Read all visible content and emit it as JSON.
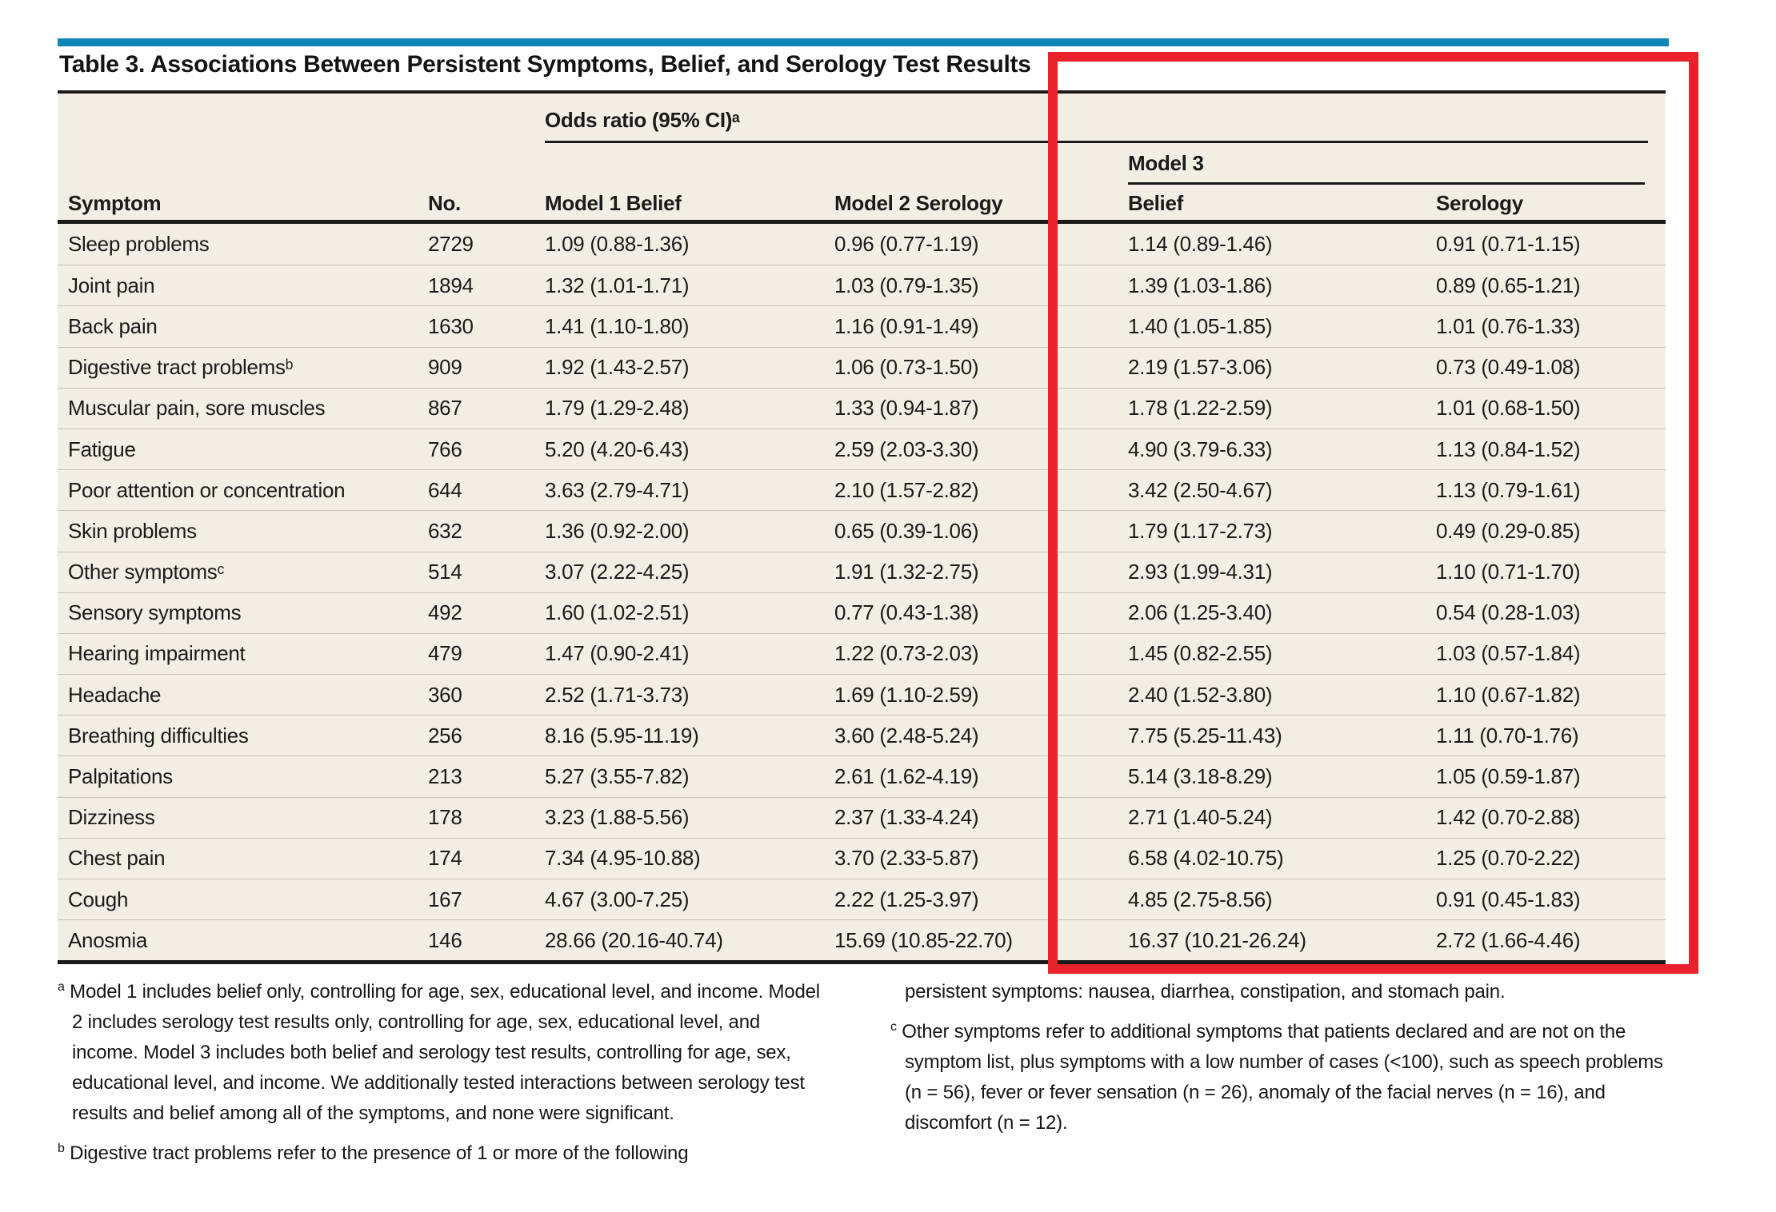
{
  "table": {
    "title": "Table 3. Associations Between Persistent Symptoms, Belief, and Serology Test Results",
    "spanners": {
      "odds_ratio": "Odds ratio (95% CI)ᵃ",
      "model3": "Model 3"
    },
    "columns": [
      "Symptom",
      "No.",
      "Model 1 Belief",
      "Model 2 Serology",
      "Belief",
      "Serology"
    ],
    "rows": [
      {
        "symptom": "Sleep problems",
        "no": "2729",
        "m1_belief": "1.09 (0.88-1.36)",
        "m2_serology": "0.96 (0.77-1.19)",
        "m3_belief": "1.14 (0.89-1.46)",
        "m3_serology": "0.91 (0.71-1.15)"
      },
      {
        "symptom": "Joint pain",
        "no": "1894",
        "m1_belief": "1.32 (1.01-1.71)",
        "m2_serology": "1.03 (0.79-1.35)",
        "m3_belief": "1.39 (1.03-1.86)",
        "m3_serology": "0.89 (0.65-1.21)"
      },
      {
        "symptom": "Back pain",
        "no": "1630",
        "m1_belief": "1.41 (1.10-1.80)",
        "m2_serology": "1.16 (0.91-1.49)",
        "m3_belief": "1.40 (1.05-1.85)",
        "m3_serology": "1.01 (0.76-1.33)"
      },
      {
        "symptom": "Digestive tract problemsᵇ",
        "no": "909",
        "m1_belief": "1.92 (1.43-2.57)",
        "m2_serology": "1.06 (0.73-1.50)",
        "m3_belief": "2.19 (1.57-3.06)",
        "m3_serology": "0.73 (0.49-1.08)"
      },
      {
        "symptom": "Muscular pain, sore muscles",
        "no": "867",
        "m1_belief": "1.79 (1.29-2.48)",
        "m2_serology": "1.33 (0.94-1.87)",
        "m3_belief": "1.78 (1.22-2.59)",
        "m3_serology": "1.01 (0.68-1.50)"
      },
      {
        "symptom": "Fatigue",
        "no": "766",
        "m1_belief": "5.20 (4.20-6.43)",
        "m2_serology": "2.59 (2.03-3.30)",
        "m3_belief": "4.90 (3.79-6.33)",
        "m3_serology": "1.13 (0.84-1.52)"
      },
      {
        "symptom": "Poor attention or concentration",
        "no": "644",
        "m1_belief": "3.63 (2.79-4.71)",
        "m2_serology": "2.10 (1.57-2.82)",
        "m3_belief": "3.42 (2.50-4.67)",
        "m3_serology": "1.13 (0.79-1.61)"
      },
      {
        "symptom": "Skin problems",
        "no": "632",
        "m1_belief": "1.36 (0.92-2.00)",
        "m2_serology": "0.65 (0.39-1.06)",
        "m3_belief": "1.79 (1.17-2.73)",
        "m3_serology": "0.49 (0.29-0.85)"
      },
      {
        "symptom": "Other symptomsᶜ",
        "no": "514",
        "m1_belief": "3.07 (2.22-4.25)",
        "m2_serology": "1.91 (1.32-2.75)",
        "m3_belief": "2.93 (1.99-4.31)",
        "m3_serology": "1.10 (0.71-1.70)"
      },
      {
        "symptom": "Sensory symptoms",
        "no": "492",
        "m1_belief": "1.60 (1.02-2.51)",
        "m2_serology": "0.77 (0.43-1.38)",
        "m3_belief": "2.06 (1.25-3.40)",
        "m3_serology": "0.54 (0.28-1.03)"
      },
      {
        "symptom": "Hearing impairment",
        "no": "479",
        "m1_belief": "1.47 (0.90-2.41)",
        "m2_serology": "1.22 (0.73-2.03)",
        "m3_belief": "1.45 (0.82-2.55)",
        "m3_serology": "1.03 (0.57-1.84)"
      },
      {
        "symptom": "Headache",
        "no": "360",
        "m1_belief": "2.52 (1.71-3.73)",
        "m2_serology": "1.69 (1.10-2.59)",
        "m3_belief": "2.40 (1.52-3.80)",
        "m3_serology": "1.10 (0.67-1.82)"
      },
      {
        "symptom": "Breathing difficulties",
        "no": "256",
        "m1_belief": "8.16 (5.95-11.19)",
        "m2_serology": "3.60 (2.48-5.24)",
        "m3_belief": "7.75 (5.25-11.43)",
        "m3_serology": "1.11 (0.70-1.76)"
      },
      {
        "symptom": "Palpitations",
        "no": "213",
        "m1_belief": "5.27 (3.55-7.82)",
        "m2_serology": "2.61 (1.62-4.19)",
        "m3_belief": "5.14 (3.18-8.29)",
        "m3_serology": "1.05 (0.59-1.87)"
      },
      {
        "symptom": "Dizziness",
        "no": "178",
        "m1_belief": "3.23 (1.88-5.56)",
        "m2_serology": "2.37 (1.33-4.24)",
        "m3_belief": "2.71 (1.40-5.24)",
        "m3_serology": "1.42 (0.70-2.88)"
      },
      {
        "symptom": "Chest pain",
        "no": "174",
        "m1_belief": "7.34 (4.95-10.88)",
        "m2_serology": "3.70 (2.33-5.87)",
        "m3_belief": "6.58 (4.02-10.75)",
        "m3_serology": "1.25 (0.70-2.22)"
      },
      {
        "symptom": "Cough",
        "no": "167",
        "m1_belief": "4.67 (3.00-7.25)",
        "m2_serology": "2.22 (1.25-3.97)",
        "m3_belief": "4.85 (2.75-8.56)",
        "m3_serology": "0.91 (0.45-1.83)"
      },
      {
        "symptom": "Anosmia",
        "no": "146",
        "m1_belief": "28.66 (20.16-40.74)",
        "m2_serology": "15.69 (10.85-22.70)",
        "m3_belief": "16.37 (10.21-26.24)",
        "m3_serology": "2.72 (1.66-4.46)"
      }
    ]
  },
  "footnotes": {
    "a_marker": "a",
    "a_text": "Model 1 includes belief only, controlling for age, sex, educational level, and income. Model 2 includes serology test results only, controlling for age, sex, educational level, and income. Model 3 includes both belief and serology test results, controlling for age, sex, educational level, and income. We additionally tested interactions between serology test results and belief among all of the symptoms, and none were significant.",
    "b_marker": "b",
    "b_text": "Digestive tract problems refer to the presence of 1 or more of the following",
    "b_continuation": "persistent symptoms: nausea, diarrhea, constipation, and stomach pain.",
    "c_marker": "c",
    "c_text": "Other symptoms refer to additional symptoms that patients declared and are not on the symptom list, plus symptoms with a low number of cases (<100), such as speech problems (n = 56), fever or fever sensation (n = 26), anomaly of the facial nerves (n = 16), and discomfort (n = 12)."
  },
  "annotation": {
    "highlight_color": "#e9212b",
    "highlighted_region": "Model 3"
  },
  "colors": {
    "accent_blue": "#0d85b5",
    "table_background": "#f1efe3",
    "rule_black": "#1a1a1a",
    "row_separator": "#c9c6b6"
  }
}
